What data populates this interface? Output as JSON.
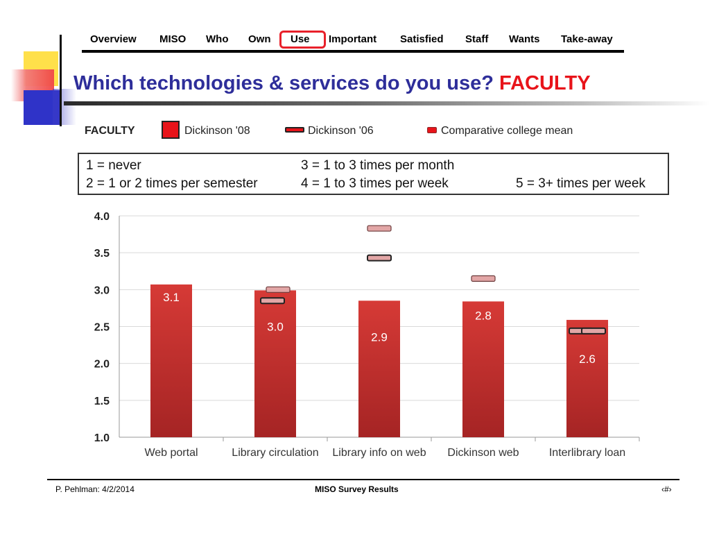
{
  "nav": {
    "items": [
      "Overview",
      "MISO",
      "Who",
      "Own",
      "Use",
      "Important",
      "Satisfied",
      "Staff",
      "Wants",
      "Take-away"
    ],
    "active": "Use",
    "highlight_color": "#e8202a"
  },
  "title": {
    "main": "Which technologies & services do you use?",
    "accent": "FACULTY"
  },
  "legend": {
    "group_label": "FACULTY",
    "items": [
      {
        "label": "Dickinson '08",
        "symbol": "red-square-icon"
      },
      {
        "label": "Dickinson '06",
        "symbol": "dark-dash-icon"
      },
      {
        "label": "Comparative college mean",
        "symbol": "pink-dash-icon"
      }
    ]
  },
  "scale_box": {
    "lines": [
      [
        "1 = never",
        "3 = 1 to 3 times per month",
        ""
      ],
      [
        "2 = 1 or 2 times per semester",
        "4 = 1 to 3 times per week",
        "5 = 3+ times per week"
      ]
    ]
  },
  "chart_data": {
    "type": "bar",
    "categories": [
      "Web portal",
      "Library circulation",
      "Library info on web",
      "Dickinson web",
      "Interlibrary loan"
    ],
    "series": [
      {
        "name": "Dickinson '08",
        "values": [
          3.07,
          2.99,
          2.85,
          2.84,
          2.59
        ],
        "data_labels": [
          "3.1",
          "3.0",
          "2.9",
          "2.8",
          "2.6"
        ],
        "color": "#c8302e"
      },
      {
        "name": "Dickinson '06",
        "values": [
          null,
          2.85,
          3.43,
          null,
          2.44
        ],
        "color": "#e2a6a6"
      },
      {
        "name": "Comparative college mean",
        "values": [
          null,
          3.0,
          3.83,
          3.15,
          2.44
        ],
        "color": "#e2a6a6"
      }
    ],
    "yticks": [
      "1.0",
      "1.5",
      "2.0",
      "2.5",
      "3.0",
      "3.5",
      "4.0"
    ],
    "ylim": [
      1.0,
      4.0
    ],
    "grid": true
  },
  "footer": {
    "left": "P. Pehlman: 4/2/2014",
    "center": "MISO Survey Results",
    "right": "‹#›"
  }
}
